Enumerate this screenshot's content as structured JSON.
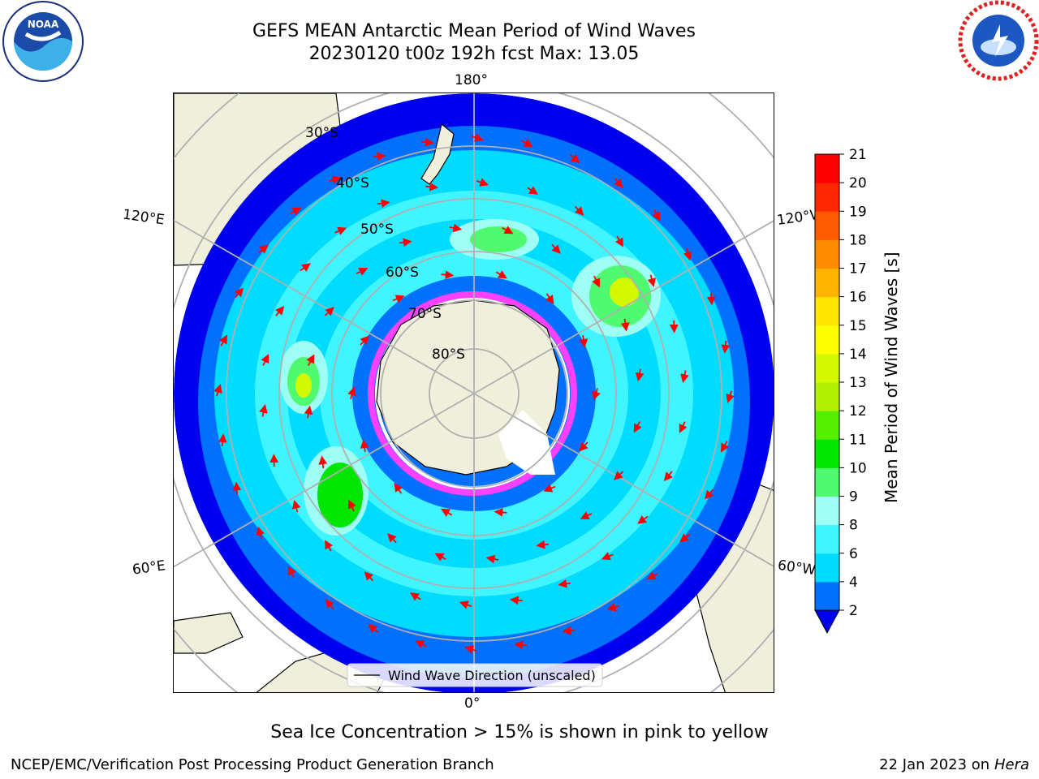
{
  "header": {
    "title": "GEFS MEAN Antarctic Mean Period of Wind Waves",
    "subtitle": "20230120 t00z 192h fcst   Max: 13.05"
  },
  "logos": {
    "noara_left": "noaa-logo",
    "nws_right": "nws-logo"
  },
  "map": {
    "projection": "south-polar-stereographic",
    "longitude_labels": {
      "top": "180°",
      "bottom": "0°",
      "upper_left": "120°E",
      "upper_right": "120°W",
      "lower_left": "60°E",
      "lower_right": "60°W"
    },
    "latitude_labels": [
      "30°S",
      "40°S",
      "50°S",
      "60°S",
      "70°S",
      "80°S"
    ],
    "legend_label": "Wind Wave Direction (unscaled)"
  },
  "colorbar": {
    "label": "Mean Period of Wind Waves [s]",
    "ticks": [
      "2",
      "4",
      "6",
      "8",
      "9",
      "10",
      "11",
      "12",
      "13",
      "14",
      "15",
      "16",
      "17",
      "18",
      "19",
      "20",
      "21"
    ],
    "colors": [
      "#0000ee",
      "#0070ff",
      "#00dcff",
      "#40f5ff",
      "#9ffff5",
      "#50fa70",
      "#00e600",
      "#55f000",
      "#b0f000",
      "#d4f800",
      "#ffff00",
      "#ffe600",
      "#ffb400",
      "#ff8c00",
      "#ff5a00",
      "#ff2800",
      "#ff0000"
    ]
  },
  "caption": "Sea Ice Concentration > 15% is shown in pink to yellow",
  "footer": {
    "left": "NCEP/EMC/Verification Post Processing Product Generation Branch",
    "right_prefix": "22 Jan 2023 on ",
    "right_machine": "Hera"
  }
}
